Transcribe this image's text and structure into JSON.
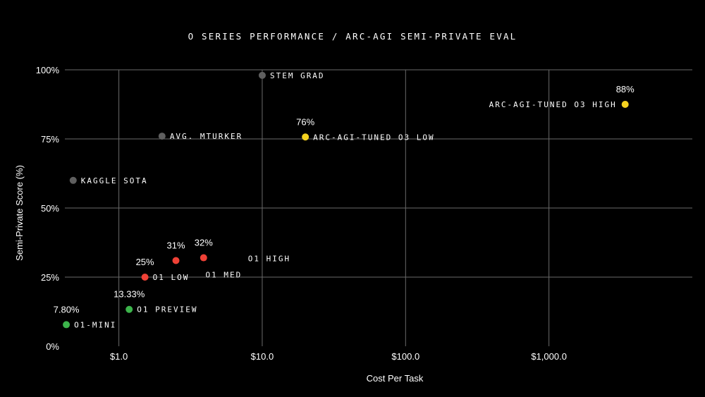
{
  "chart_data": {
    "type": "scatter",
    "title": "O SERIES PERFORMANCE / ARC-AGI SEMI-PRIVATE EVAL",
    "xlabel": "Cost Per Task",
    "ylabel": "Semi-Private Score (%)",
    "x_scale": "log",
    "xlim": [
      0.42,
      10000
    ],
    "ylim": [
      0,
      100
    ],
    "x_ticks": [
      {
        "value": 1,
        "label": "$1.0"
      },
      {
        "value": 10,
        "label": "$10.0"
      },
      {
        "value": 100,
        "label": "$100.0"
      },
      {
        "value": 1000,
        "label": "$1,000.0"
      }
    ],
    "y_ticks": [
      {
        "value": 0,
        "label": "0%"
      },
      {
        "value": 25,
        "label": "25%"
      },
      {
        "value": 50,
        "label": "50%"
      },
      {
        "value": 75,
        "label": "75%"
      },
      {
        "value": 100,
        "label": "100%"
      }
    ],
    "grid": true,
    "colors": {
      "background": "#000000",
      "grid": "#6a6a6a",
      "human": "#5f5f5f",
      "o1": "#ef4136",
      "mini": "#3cb44b",
      "o3": "#f5d21f"
    },
    "points": [
      {
        "label": "STEM GRAD",
        "x": 10,
        "y": 98,
        "color": "#5f5f5f",
        "value_label": ""
      },
      {
        "label": "AVG. MTURKER",
        "x": 2,
        "y": 76,
        "color": "#5f5f5f",
        "value_label": ""
      },
      {
        "label": "KAGGLE SOTA",
        "x": 0.48,
        "y": 60,
        "color": "#5f5f5f",
        "value_label": ""
      },
      {
        "label": "ARC-AGI-TUNED O3 HIGH",
        "x": 3400,
        "y": 87.5,
        "color": "#f5d21f",
        "value_label": "88%"
      },
      {
        "label": "ARC-AGI-TUNED O3 LOW",
        "x": 20,
        "y": 75.7,
        "color": "#f5d21f",
        "value_label": "76%"
      },
      {
        "label": "O1 HIGH",
        "x": 3.9,
        "y": 32,
        "color": "#ef4136",
        "value_label": "32%"
      },
      {
        "label": "O1 MED",
        "x": 2.5,
        "y": 31,
        "color": "#ef4136",
        "value_label": "31%"
      },
      {
        "label": "O1 LOW",
        "x": 1.52,
        "y": 25,
        "color": "#ef4136",
        "value_label": "25%"
      },
      {
        "label": "O1 PREVIEW",
        "x": 1.18,
        "y": 13.33,
        "color": "#3cb44b",
        "value_label": "13.33%"
      },
      {
        "label": "O1-MINI",
        "x": 0.43,
        "y": 7.8,
        "color": "#3cb44b",
        "value_label": "7.80%"
      }
    ]
  }
}
